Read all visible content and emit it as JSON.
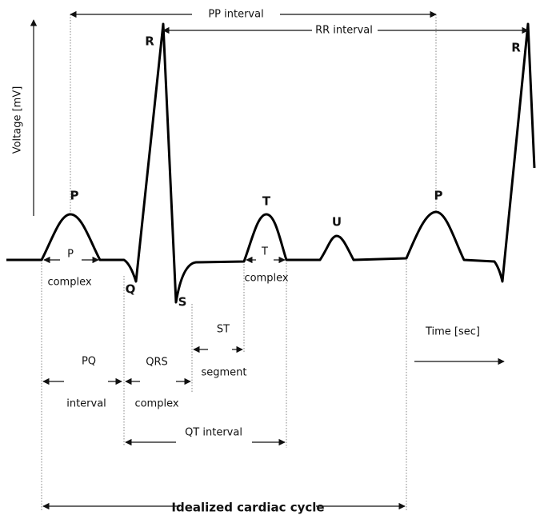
{
  "title": "Idealized cardiac cycle",
  "axes": {
    "y": "Voltage [mV]",
    "x": "Time [sec]"
  },
  "intervals": {
    "pp": "PP interval",
    "rr": "RR interval",
    "pq": {
      "line1": "PQ",
      "line2": "interval"
    },
    "qrs": {
      "line1": "QRS",
      "line2": "complex"
    },
    "st": {
      "line1": "ST",
      "line2": "segment"
    },
    "qt": "QT interval"
  },
  "waves": {
    "r1": "R",
    "r2": "R",
    "p1": "P",
    "p2": "P",
    "q": "Q",
    "s": "S",
    "t": "T",
    "u": "U"
  },
  "complexes": {
    "p": {
      "line1": "P",
      "line2": "complex"
    },
    "t": {
      "line1": "T",
      "line2": "complex"
    }
  }
}
